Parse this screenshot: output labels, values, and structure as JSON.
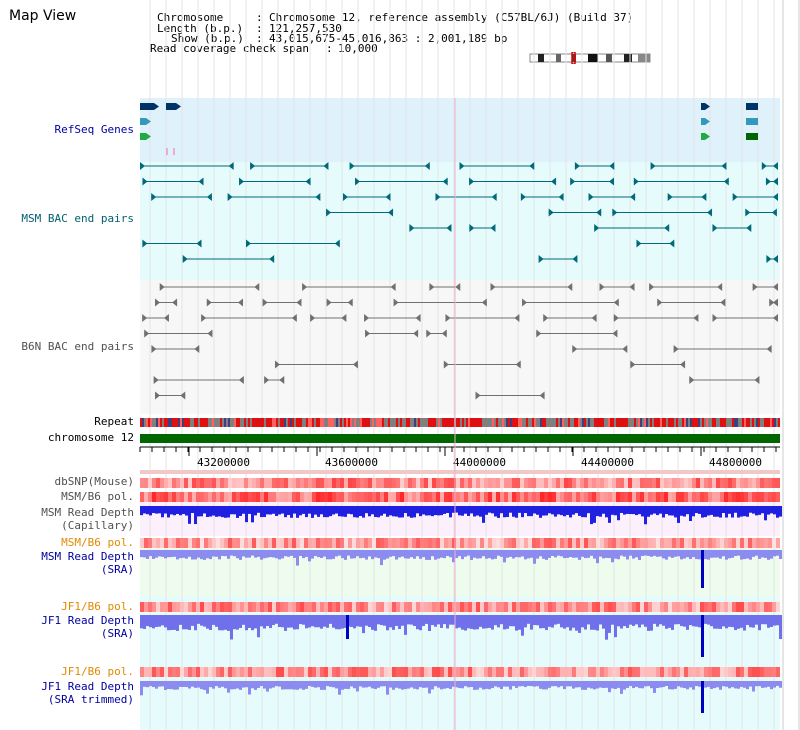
{
  "header": {
    "map_view": "Map View",
    "chromosome_key": "Chromosome",
    "chromosome_value": "Chromosome 12, reference assembly (C57BL/6J) (Build 37)",
    "length_key": "Length (b.p.)",
    "length_value": "121,257,530",
    "show_key": "Show (b.p.)",
    "show_value": "43,015,675-45,016,863 : 2,001,189 bp",
    "coverage_key": "Read coverage check span",
    "coverage_value": "10,000"
  },
  "tracks": {
    "refseq": "RefSeq Genes",
    "msm_bac": "MSM BAC end pairs",
    "b6n_bac": "B6N BAC end pairs",
    "repeat": "Repeat",
    "chromosome": "chromosome 12",
    "dbsnp": "dbSNP(Mouse)",
    "msm_b6_pol_1": "MSM/B6 pol.",
    "msm_read_depth_cap_1": "MSM Read Depth",
    "msm_read_depth_cap_2": "(Capillary)",
    "msm_b6_pol_2": "MSM/B6 pol.",
    "msm_read_depth_sra_1": "MSM Read Depth",
    "msm_read_depth_sra_2": "(SRA)",
    "jf1_b6_pol_1": "JF1/B6 pol.",
    "jf1_read_depth_sra_1": "JF1 Read Depth",
    "jf1_read_depth_sra_2": "(SRA)",
    "jf1_b6_pol_2": "JF1/B6 pol.",
    "jf1_read_depth_trim_1": "JF1 Read Depth",
    "jf1_read_depth_trim_2": "(SRA trimmed)"
  },
  "axis": {
    "ticks": [
      "43200000",
      "43600000",
      "44000000",
      "44400000",
      "44800000"
    ]
  },
  "colors": {
    "refseq_bg": "#dff1fb",
    "msm_bg": "#e6fbfb",
    "b6n_bg": "#f7f7f7",
    "chrom_bar": "#006600",
    "msm_pair": "#006a7a",
    "b6n_pair": "#707070",
    "depth_dark": "#0000e0",
    "depth_light": "#8080f0",
    "pol_red": "#ff3030"
  }
}
